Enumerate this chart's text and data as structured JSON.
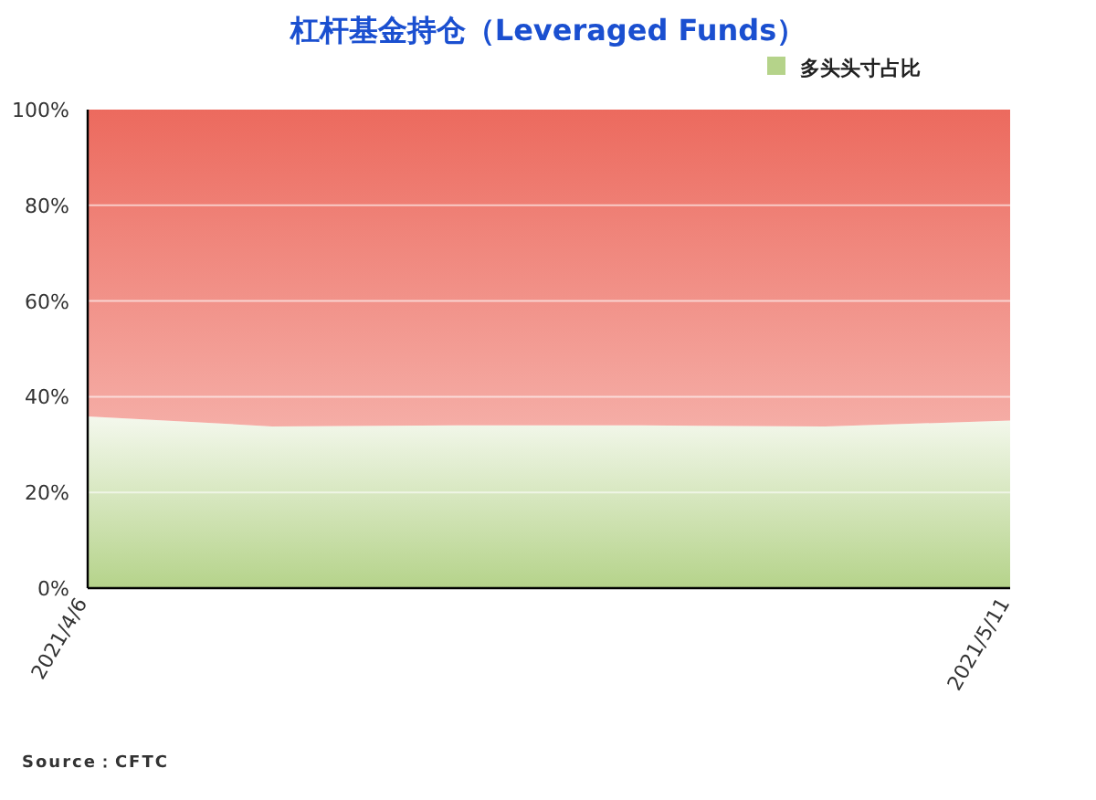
{
  "chart_data": {
    "type": "area",
    "title": "杠杆基金持仓（Leveraged Funds）",
    "stacked": true,
    "x": [
      "2021-04-06",
      "2021-04-13",
      "2021-04-20",
      "2021-04-27",
      "2021-05-04",
      "2021-05-11"
    ],
    "series": [
      {
        "name": "多头头寸占比",
        "color": "#b5d38a",
        "values": [
          35.9,
          33.8,
          34.0,
          34.0,
          33.8,
          35.0
        ]
      },
      {
        "color": "#ec6a5e",
        "values": [
          64.1,
          66.2,
          66.0,
          66.0,
          66.2,
          65.0
        ]
      }
    ],
    "xlim": [
      "2021-04-06",
      "2021-05-11"
    ],
    "xticks": [
      {
        "value": "2021-04-06",
        "label": "2021/4/6"
      },
      {
        "value": "2021-05-11",
        "label": "2021/5/11"
      }
    ],
    "ylim": [
      0,
      100
    ],
    "yticks": [
      {
        "value": 0,
        "label": "0%"
      },
      {
        "value": 20,
        "label": "20%"
      },
      {
        "value": 40,
        "label": "40%"
      },
      {
        "value": 60,
        "label": "60%"
      },
      {
        "value": 80,
        "label": "80%"
      },
      {
        "value": 100,
        "label": "100%"
      }
    ],
    "grid": "y",
    "legend": "top right",
    "annotations": [
      "Source：CFTC"
    ]
  }
}
